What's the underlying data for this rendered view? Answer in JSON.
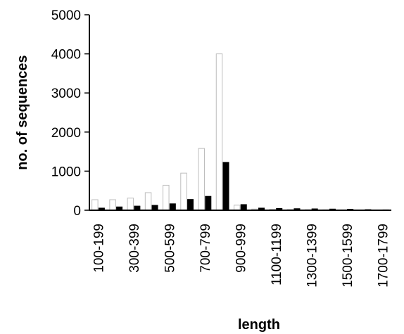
{
  "chart_data": {
    "type": "bar",
    "title": "",
    "xlabel": "length",
    "ylabel": "no. of sequences",
    "ylim": [
      0,
      5000
    ],
    "yticks": [
      0,
      1000,
      2000,
      3000,
      4000,
      5000
    ],
    "categories": [
      "100-199",
      "200-299",
      "300-399",
      "400-499",
      "500-599",
      "600-699",
      "700-799",
      "800-899",
      "900-999",
      "1000-1099",
      "1100-1199",
      "1200-1299",
      "1300-1399",
      "1400-1499",
      "1500-1599",
      "1600-1699",
      "1700-1799"
    ],
    "tick_labels": [
      "100-199",
      "300-399",
      "500-599",
      "700-799",
      "900-999",
      "1100-1199",
      "1300-1399",
      "1500-1599",
      "1700-1799"
    ],
    "series": [
      {
        "fill": "#ffffff",
        "values": [
          270,
          270,
          310,
          450,
          640,
          950,
          1580,
          4000,
          130,
          30,
          25,
          20,
          15,
          12,
          10,
          8,
          5
        ]
      },
      {
        "fill": "#000000",
        "values": [
          60,
          90,
          110,
          130,
          170,
          280,
          360,
          1230,
          150,
          60,
          50,
          45,
          40,
          35,
          30,
          20,
          15
        ]
      }
    ],
    "grid": false,
    "legend": "none"
  }
}
